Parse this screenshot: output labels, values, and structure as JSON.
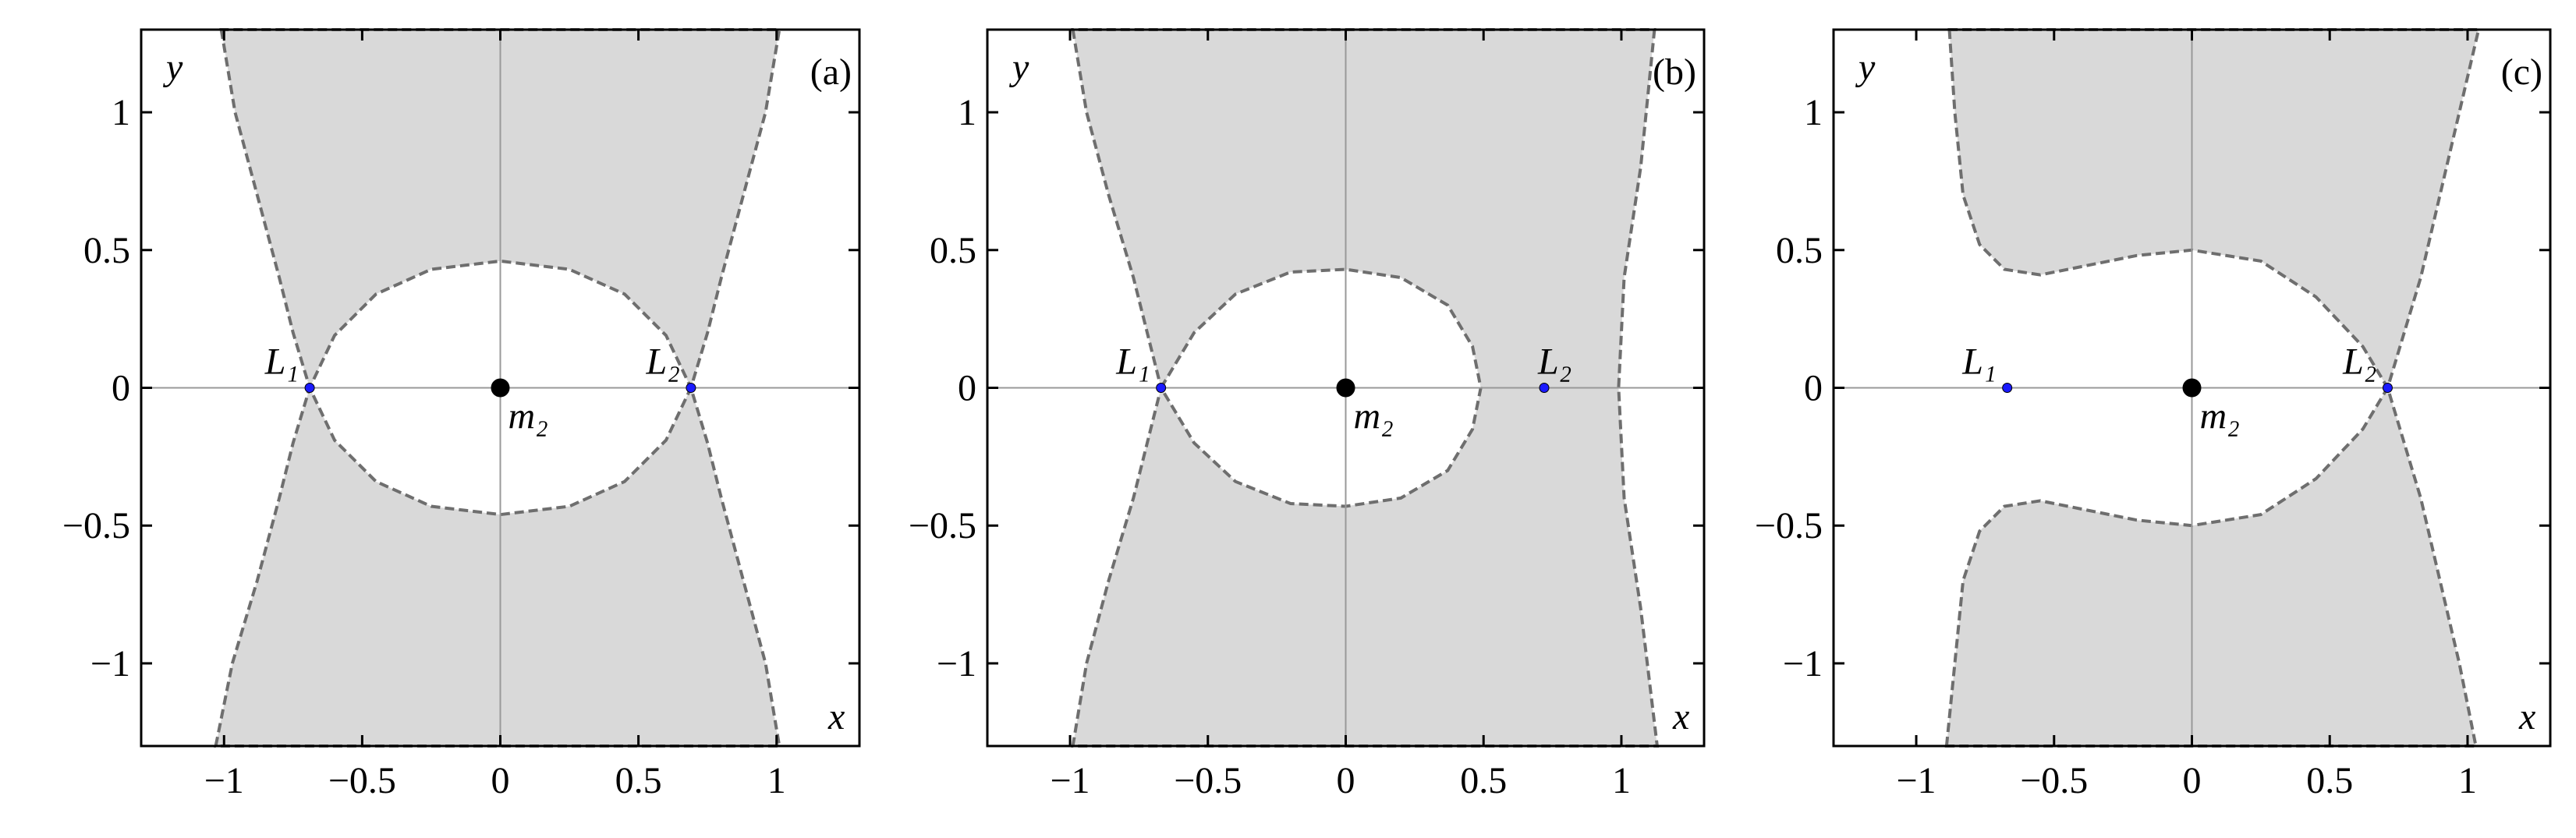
{
  "chart_data": [
    {
      "type": "region",
      "panel_label": "(a)",
      "xlabel": "x",
      "ylabel": "y",
      "xlim": [
        -1.3,
        1.3
      ],
      "ylim": [
        -1.3,
        1.3
      ],
      "xticks": [
        {
          "value": -1,
          "label": "−1"
        },
        {
          "value": -0.5,
          "label": "−0.5"
        },
        0,
        0.5,
        1
      ],
      "yticks": [
        {
          "value": -1,
          "label": "−1"
        },
        {
          "value": -0.5,
          "label": "−0.5"
        },
        0,
        0.5,
        1
      ],
      "zero_lines": true,
      "regions": [
        {
          "color": "#d9d9d9",
          "edge_color": "#6e6e6e",
          "x": [
            -1.01,
            -0.96,
            -0.88,
            -0.8,
            -0.75,
            -0.69,
            -0.6,
            -0.45,
            -0.25,
            0,
            0.25,
            0.45,
            0.6,
            0.69,
            0.75,
            0.8,
            0.88,
            0.96,
            1.01
          ],
          "y": [
            1.3,
            1.0,
            0.7,
            0.4,
            0.2,
            0,
            0.19,
            0.34,
            0.43,
            0.46,
            0.43,
            0.34,
            0.19,
            0,
            0.2,
            0.4,
            0.7,
            1.0,
            1.3
          ]
        },
        {
          "color": "#d9d9d9",
          "edge_color": "#6e6e6e",
          "x": [
            -1.03,
            -0.97,
            -0.88,
            -0.8,
            -0.75,
            -0.69,
            -0.6,
            -0.45,
            -0.25,
            0,
            0.25,
            0.45,
            0.6,
            0.69,
            0.75,
            0.8,
            0.88,
            0.96,
            1.01
          ],
          "y": [
            -1.3,
            -1.0,
            -0.7,
            -0.4,
            -0.2,
            0,
            -0.19,
            -0.34,
            -0.43,
            -0.46,
            -0.43,
            -0.34,
            -0.19,
            0,
            -0.2,
            -0.4,
            -0.7,
            -1.0,
            -1.3
          ]
        }
      ],
      "points": [
        {
          "name": "L₁",
          "x": -0.69,
          "y": 0,
          "color": "#1a1aff",
          "size": "small",
          "label_position": "upper left"
        },
        {
          "name": "L₂",
          "x": 0.69,
          "y": 0,
          "color": "#1a1aff",
          "size": "small",
          "label_position": "upper left"
        },
        {
          "name": "m₂",
          "x": 0,
          "y": 0,
          "color": "#000000",
          "size": "large",
          "label_position": "lower right"
        }
      ]
    },
    {
      "type": "region",
      "panel_label": "(b)",
      "xlabel": "x",
      "ylabel": "y",
      "xlim": [
        -1.3,
        1.3
      ],
      "ylim": [
        -1.3,
        1.3
      ],
      "xticks": [
        {
          "value": -1,
          "label": "−1"
        },
        {
          "value": -0.5,
          "label": "−0.5"
        },
        0,
        0.5,
        1
      ],
      "yticks": [
        {
          "value": -1,
          "label": "−1"
        },
        {
          "value": -0.5,
          "label": "−0.5"
        },
        0,
        0.5,
        1
      ],
      "zero_lines": true,
      "regions": [
        {
          "color": "#d9d9d9",
          "edge_color": "#6e6e6e",
          "x": [
            -0.99,
            -0.94,
            -0.86,
            -0.77,
            -0.72,
            -0.67,
            -0.72,
            -0.77,
            -0.86,
            -0.94,
            -0.99,
            1.13,
            1.07,
            1.01,
            0.99,
            1.01,
            1.07,
            1.12
          ],
          "y": [
            1.3,
            1.0,
            0.7,
            0.4,
            0.2,
            0,
            -0.2,
            -0.4,
            -0.7,
            -1.0,
            -1.3,
            -1.3,
            -0.8,
            -0.4,
            0,
            0.4,
            0.8,
            1.3
          ]
        },
        {
          "color": "#ffffff",
          "edge_color": "#6e6e6e",
          "x": [
            -0.67,
            -0.55,
            -0.4,
            -0.2,
            0,
            0.2,
            0.37,
            0.46,
            0.49,
            0.46,
            0.37,
            0.2,
            0,
            -0.2,
            -0.4,
            -0.55
          ],
          "y": [
            0,
            0.2,
            0.34,
            0.42,
            0.43,
            0.4,
            0.3,
            0.15,
            0,
            -0.15,
            -0.3,
            -0.4,
            -0.43,
            -0.42,
            -0.34,
            -0.2
          ]
        }
      ],
      "points": [
        {
          "name": "L₁",
          "x": -0.67,
          "y": 0,
          "color": "#1a1aff",
          "size": "small",
          "label_position": "upper left"
        },
        {
          "name": "L₂",
          "x": 0.72,
          "y": 0,
          "color": "#1a1aff",
          "size": "small",
          "label_position": "upper right"
        },
        {
          "name": "m₂",
          "x": 0,
          "y": 0,
          "color": "#000000",
          "size": "large",
          "label_position": "lower right"
        }
      ]
    },
    {
      "type": "region",
      "panel_label": "(c)",
      "xlabel": "x",
      "ylabel": "y",
      "xlim": [
        -1.3,
        1.3
      ],
      "ylim": [
        -1.3,
        1.3
      ],
      "xticks": [
        {
          "value": -1,
          "label": "−1"
        },
        {
          "value": -0.5,
          "label": "−0.5"
        },
        0,
        0.5,
        1
      ],
      "yticks": [
        {
          "value": -1,
          "label": "−1"
        },
        {
          "value": -0.5,
          "label": "−0.5"
        },
        0,
        0.5,
        1
      ],
      "zero_lines": true,
      "regions": [
        {
          "color": "#d9d9d9",
          "edge_color": "#6e6e6e",
          "x": [
            -0.88,
            -0.86,
            -0.83,
            -0.77,
            -0.68,
            -0.55,
            -0.4,
            -0.2,
            0,
            0.25,
            0.45,
            0.62,
            0.71,
            0.77,
            0.83,
            0.9,
            0.97,
            1.04
          ],
          "y": [
            1.3,
            1.0,
            0.7,
            0.52,
            0.43,
            0.41,
            0.44,
            0.48,
            0.5,
            0.46,
            0.33,
            0.15,
            0,
            0.2,
            0.4,
            0.7,
            1.0,
            1.3
          ]
        },
        {
          "color": "#d9d9d9",
          "edge_color": "#6e6e6e",
          "x": [
            -0.89,
            -0.86,
            -0.83,
            -0.77,
            -0.68,
            -0.55,
            -0.4,
            -0.2,
            0,
            0.25,
            0.45,
            0.62,
            0.71,
            0.77,
            0.83,
            0.9,
            0.97,
            1.03
          ],
          "y": [
            -1.3,
            -1.0,
            -0.7,
            -0.52,
            -0.43,
            -0.41,
            -0.44,
            -0.48,
            -0.5,
            -0.46,
            -0.33,
            -0.15,
            0,
            -0.2,
            -0.4,
            -0.7,
            -1.0,
            -1.3
          ]
        }
      ],
      "points": [
        {
          "name": "L₁",
          "x": -0.67,
          "y": 0,
          "color": "#1a1aff",
          "size": "small",
          "label_position": "upper left"
        },
        {
          "name": "L₂",
          "x": 0.71,
          "y": 0,
          "color": "#1a1aff",
          "size": "small",
          "label_position": "upper left"
        },
        {
          "name": "m₂",
          "x": 0,
          "y": 0,
          "color": "#000000",
          "size": "large",
          "label_position": "lower right"
        }
      ]
    }
  ]
}
